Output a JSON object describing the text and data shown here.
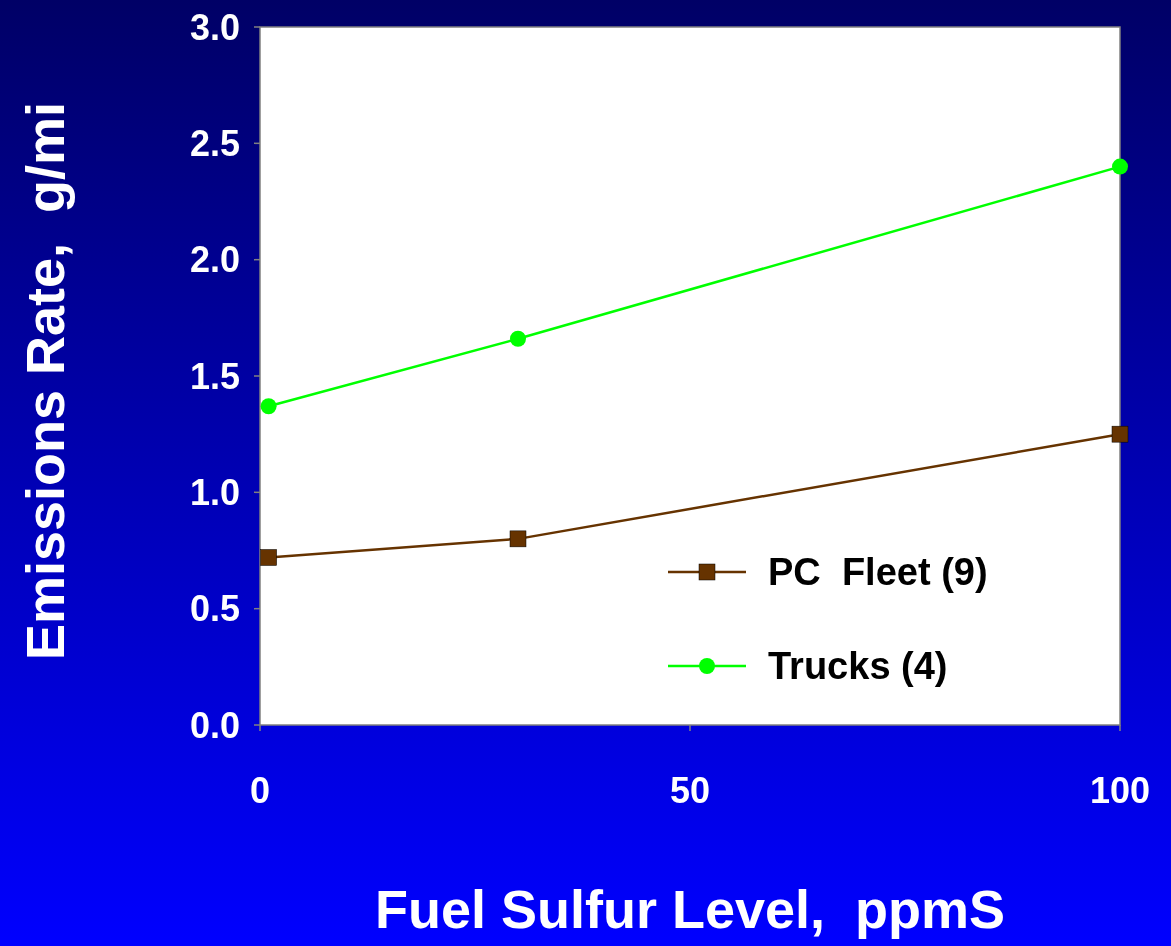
{
  "chart_data": {
    "type": "line",
    "xlabel": "Fuel Sulfur Level,  ppmS",
    "ylabel": "Emissions Rate,  g/mi",
    "x": [
      1,
      30,
      100
    ],
    "series": [
      {
        "name": "PC  Fleet (9)",
        "color": "#663300",
        "marker": "square",
        "values": [
          0.72,
          0.8,
          1.25
        ]
      },
      {
        "name": "Trucks (4)",
        "color": "#00ff00",
        "marker": "circle",
        "values": [
          1.37,
          1.66,
          2.4
        ]
      }
    ],
    "xlim": [
      0,
      100
    ],
    "xticks": [
      0,
      50,
      100
    ],
    "ylim": [
      0,
      3
    ],
    "yticks": [
      {
        "value": 0,
        "label": "0.0"
      },
      {
        "value": 0.5,
        "label": "0.5"
      },
      {
        "value": 1,
        "label": "1.0"
      },
      {
        "value": 1.5,
        "label": "1.5"
      },
      {
        "value": 2,
        "label": "2.0"
      },
      {
        "value": 2.5,
        "label": "2.5"
      },
      {
        "value": 3,
        "label": "3.0"
      }
    ],
    "legend": "bottom right",
    "line_style": "solid",
    "grid": false
  }
}
